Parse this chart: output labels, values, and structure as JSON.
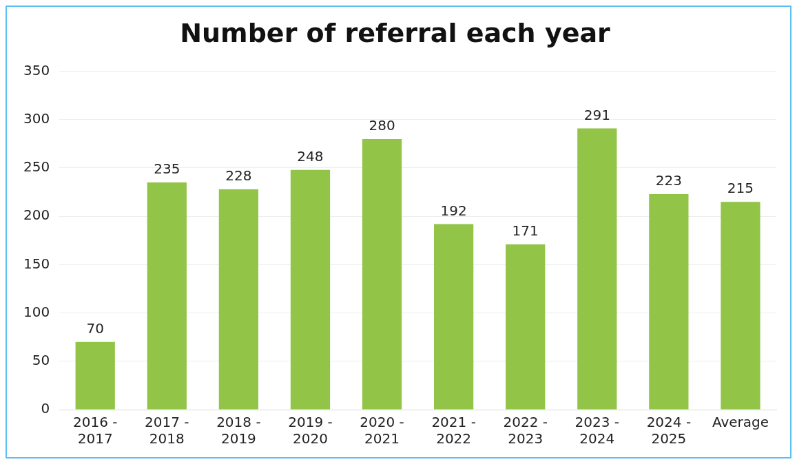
{
  "chart_data": {
    "type": "bar",
    "title": "Number of referral each year",
    "categories": [
      "2016 - 2017",
      "2017 - 2018",
      "2018 - 2019",
      "2019 - 2020",
      "2020 - 2021",
      "2021 - 2022",
      "2022 - 2023",
      "2023 - 2024",
      "2024 - 2025",
      "Average"
    ],
    "values": [
      70,
      235,
      228,
      248,
      280,
      192,
      171,
      291,
      223,
      215
    ],
    "color": "#92c447",
    "ylim": [
      0,
      350
    ],
    "yticks": [
      0,
      50,
      100,
      150,
      200,
      250,
      300,
      350
    ],
    "grid": "y",
    "data_labels": true,
    "legend": false
  }
}
